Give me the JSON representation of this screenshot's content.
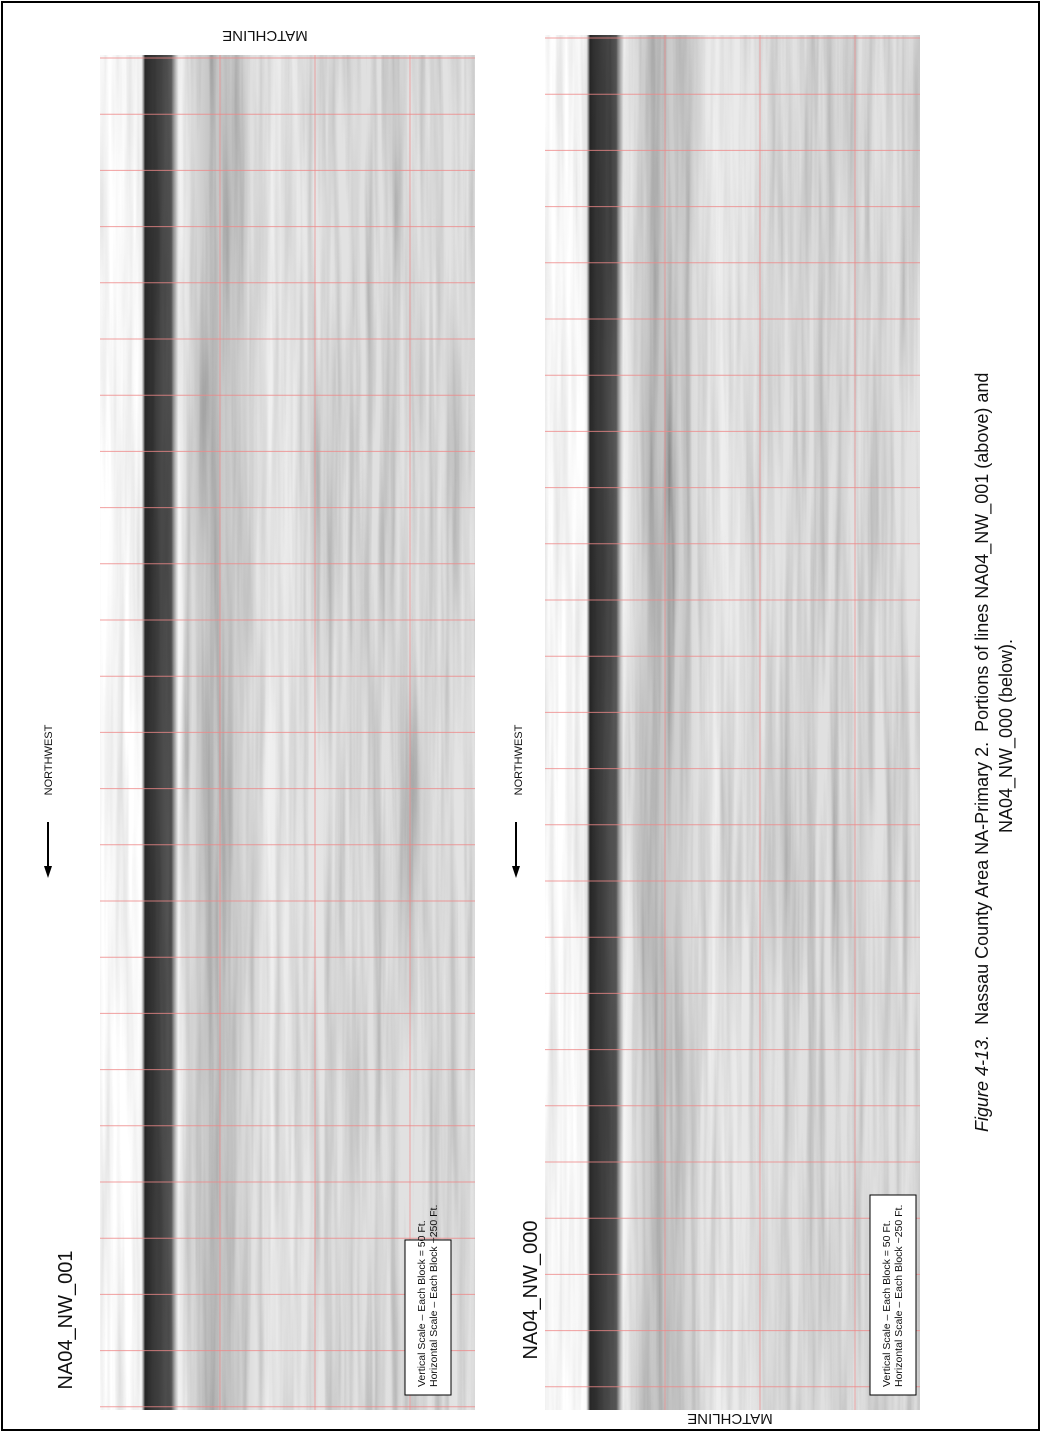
{
  "panels": [
    {
      "matchline": "MATCHLINE",
      "direction": "NORTHWEST",
      "line_id": "NA04_NW_001",
      "scale": [
        "Vertical Scale – Each Block = 50 Ft.",
        "Horizontal Scale – Each Block ~250 Ft."
      ]
    },
    {
      "matchline": "MATCHLINE",
      "direction": "NORTHWEST",
      "line_id": "NA04_NW_000",
      "scale": [
        "Vertical Scale – Each Block = 50 Ft.",
        "Horizontal Scale – Each Block ~250 Ft."
      ]
    }
  ],
  "caption": {
    "figure_label": "Figure 4-13.",
    "line1": "  Nassau County Area NA-Primary 2.  Portions of lines NA04_NW_001 (above) and",
    "line2": "NA04_NW_000 (below)."
  }
}
